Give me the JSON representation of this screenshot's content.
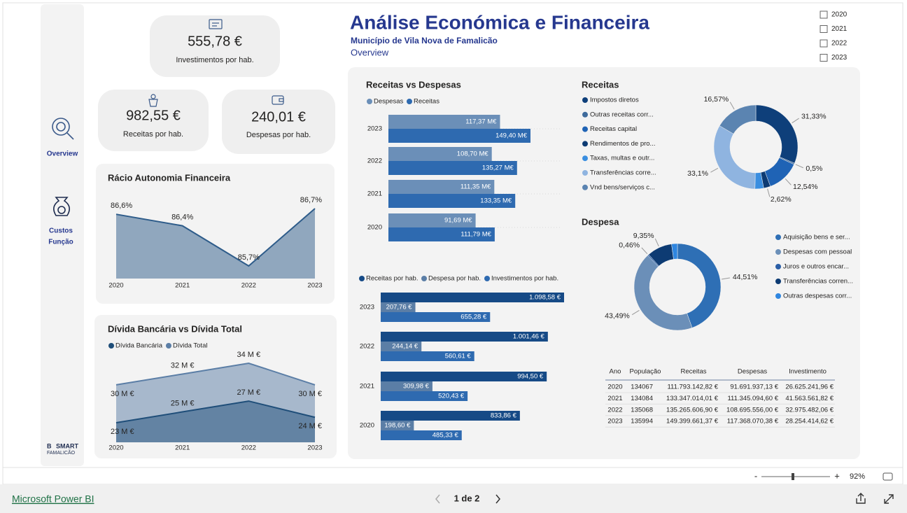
{
  "header": {
    "title": "Análise Económica e Financeira",
    "subtitle": "Município de Vila Nova de Famalicão",
    "page": "Overview"
  },
  "slicer": {
    "years": [
      "2020",
      "2021",
      "2022",
      "2023"
    ]
  },
  "nav": {
    "overview": "Overview",
    "costs": [
      "Custos",
      "Função"
    ]
  },
  "logo": {
    "mark": "B",
    "brand": "SMART",
    "city": "FAMALICÃO"
  },
  "kpis": [
    {
      "value": "555,78 €",
      "label": "Investimentos por hab."
    },
    {
      "value": "982,55 €",
      "label": "Receitas por hab."
    },
    {
      "value": "240,01 €",
      "label": "Despesas por hab."
    }
  ],
  "chart_data": [
    {
      "type": "area",
      "title": "Rácio Autonomia Financeira",
      "categories": [
        "2020",
        "2021",
        "2022",
        "2023"
      ],
      "values": [
        86.6,
        86.4,
        85.7,
        86.7
      ],
      "value_labels": [
        "86,6%",
        "86,4%",
        "85,7%",
        "86,7%"
      ],
      "color": "#2e5c8a"
    },
    {
      "type": "area",
      "title": "Dívida Bancária vs Dívida Total",
      "categories": [
        "2020",
        "2021",
        "2022",
        "2023"
      ],
      "series": [
        {
          "name": "Dívida Bancária",
          "color": "#1f4e79",
          "values": [
            23,
            25,
            27,
            24
          ],
          "value_labels": [
            "23 M €",
            "25 M €",
            "27 M €",
            "24 M €"
          ]
        },
        {
          "name": "Dívida Total",
          "color": "#5b7ea6",
          "values": [
            30,
            32,
            34,
            30
          ],
          "value_labels": [
            "30 M €",
            "32 M €",
            "34 M €",
            "30 M €"
          ]
        }
      ]
    },
    {
      "type": "hbar",
      "title": "Receitas vs Despesas",
      "categories": [
        "2023",
        "2022",
        "2021",
        "2020"
      ],
      "series": [
        {
          "name": "Despesas",
          "color": "#6b8fb8",
          "values": [
            117.37,
            108.7,
            111.35,
            91.69
          ],
          "value_labels": [
            "117,37 M€",
            "108,70 M€",
            "111,35 M€",
            "91,69 M€"
          ]
        },
        {
          "name": "Receitas",
          "color": "#2e6ab0",
          "values": [
            149.4,
            135.27,
            133.35,
            111.79
          ],
          "value_labels": [
            "149,40 M€",
            "135,27 M€",
            "133,35 M€",
            "111,79 M€"
          ]
        }
      ]
    },
    {
      "type": "hbar",
      "categories": [
        "2023",
        "2022",
        "2021",
        "2020"
      ],
      "series": [
        {
          "name": "Receitas por hab.",
          "color": "#164a86",
          "values": [
            1098.58,
            1001.46,
            994.5,
            833.86
          ],
          "value_labels": [
            "1.098,58 €",
            "1.001,46 €",
            "994,50 €",
            "833,86 €"
          ]
        },
        {
          "name": "Despesa por hab.",
          "color": "#5b7ea6",
          "values": [
            207.76,
            244.14,
            309.98,
            198.6
          ],
          "value_labels": [
            "207,76 €",
            "244,14 €",
            "309,98 €",
            "198,60 €"
          ]
        },
        {
          "name": "Investimentos por hab.",
          "color": "#2e6ab0",
          "values": [
            655.28,
            560.61,
            520.43,
            485.33
          ],
          "value_labels": [
            "655,28 €",
            "560,61 €",
            "520,43 €",
            "485,33 €"
          ]
        }
      ]
    },
    {
      "type": "donut",
      "title": "Receitas",
      "categories": [
        "Impostos diretos",
        "Outras receitas corr...",
        "Receitas capital",
        "Rendimentos de pro...",
        "Taxas, multas e outr...",
        "Transferências corre...",
        "Vnd bens/serviços c..."
      ],
      "values": [
        31.33,
        0.5,
        12.54,
        2.62,
        3.34,
        33.1,
        16.57
      ],
      "value_labels": [
        "31,33%",
        "0,5%",
        "12,54%",
        "2,62%",
        null,
        "33,1%",
        "16,57%"
      ],
      "colors": [
        "#0e3f7a",
        "#3f6b9c",
        "#1f63b5",
        "#0d3b73",
        "#3a8ee0",
        "#8fb4e0",
        "#5b84b1"
      ]
    },
    {
      "type": "donut",
      "title": "Despesa",
      "categories": [
        "Aquisição bens e ser...",
        "Despesas com pessoal",
        "Juros e outros encar...",
        "Transferências corren...",
        "Outras despesas corr..."
      ],
      "values": [
        44.51,
        43.49,
        0.46,
        9.35,
        2.19
      ],
      "value_labels": [
        "44,51%",
        "43,49%",
        "0,46%",
        "9,35%",
        null
      ],
      "colors": [
        "#2e6fb5",
        "#6b8fb8",
        "#2a5ea6",
        "#0d3b73",
        "#2f86e0"
      ]
    }
  ],
  "table": {
    "columns": [
      "Ano",
      "População",
      "Receitas",
      "Despesas",
      "Investimento"
    ],
    "rows": [
      [
        "2020",
        "134067",
        "111.793.142,82 €",
        "91.691.937,13 €",
        "26.625.241,96 €"
      ],
      [
        "2021",
        "134084",
        "133.347.014,01 €",
        "111.345.094,60 €",
        "41.563.561,82 €"
      ],
      [
        "2022",
        "135068",
        "135.265.606,90 €",
        "108.695.556,00 €",
        "32.975.482,06 €"
      ],
      [
        "2023",
        "135994",
        "149.399.661,37 €",
        "117.368.070,38 €",
        "28.254.414,62 €"
      ]
    ]
  },
  "footer": {
    "brand": "Microsoft Power BI",
    "pager": "1 de 2",
    "zoom": "92%",
    "zoom_out": "-",
    "zoom_in": "+"
  }
}
